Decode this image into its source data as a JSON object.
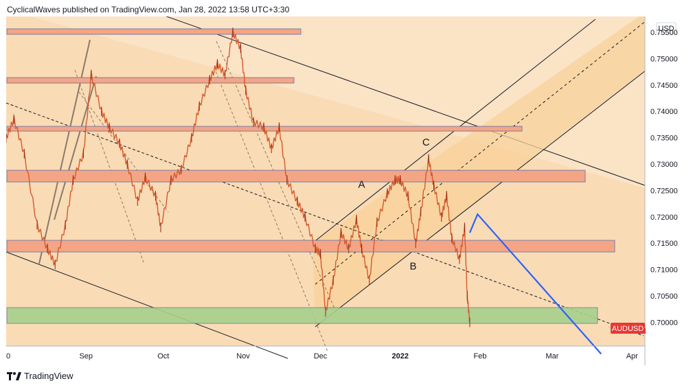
{
  "header": {
    "author": "CyclicalWaves",
    "published_text": "published on TradingView.com,",
    "timestamp": "Jan 28, 2022 13:58 UTC+3:30"
  },
  "footer": {
    "brand": "TradingView",
    "logo_icon": "tradingview-logo-icon"
  },
  "colors": {
    "background": "#fbe3c6",
    "channel_fill": "#f8d29a",
    "resistance_zone": "#f4a585",
    "support_zone": "#a8d08d",
    "candle": "#d35a2e",
    "projection": "#2962ff",
    "symbol_badge": "#e53935"
  },
  "chart_data": {
    "type": "line",
    "symbol": "AUDUSD",
    "currency": "USD",
    "price_scale_ticks": [
      "0.75500",
      "0.75000",
      "0.74500",
      "0.74000",
      "0.73500",
      "0.73000",
      "0.72500",
      "0.72000",
      "0.71500",
      "0.71000",
      "0.70500",
      "0.70000"
    ],
    "time_ticks": [
      "0",
      "Sep",
      "Oct",
      "Nov",
      "Dec",
      "2022",
      "Feb",
      "Mar",
      "Apr"
    ],
    "ylim": [
      0.6955,
      0.758
    ],
    "last_price_label": "AUDUSD",
    "wave_labels": [
      {
        "text": "A",
        "date": "2021-12-17",
        "price": 0.7255
      },
      {
        "text": "B",
        "date": "2022-01-06",
        "price": 0.71
      },
      {
        "text": "C",
        "date": "2022-01-11",
        "price": 0.7335
      }
    ],
    "price_path": [
      [
        "2021-08-01",
        0.735
      ],
      [
        "2021-08-04",
        0.7385
      ],
      [
        "2021-08-08",
        0.732
      ],
      [
        "2021-08-13",
        0.7185
      ],
      [
        "2021-08-17",
        0.714
      ],
      [
        "2021-08-20",
        0.711
      ],
      [
        "2021-08-24",
        0.7185
      ],
      [
        "2021-08-27",
        0.727
      ],
      [
        "2021-08-31",
        0.732
      ],
      [
        "2021-09-03",
        0.747
      ],
      [
        "2021-09-07",
        0.74
      ],
      [
        "2021-09-10",
        0.737
      ],
      [
        "2021-09-14",
        0.734
      ],
      [
        "2021-09-17",
        0.73
      ],
      [
        "2021-09-21",
        0.723
      ],
      [
        "2021-09-24",
        0.7275
      ],
      [
        "2021-09-28",
        0.724
      ],
      [
        "2021-09-30",
        0.718
      ],
      [
        "2021-10-04",
        0.727
      ],
      [
        "2021-10-08",
        0.729
      ],
      [
        "2021-10-12",
        0.735
      ],
      [
        "2021-10-15",
        0.741
      ],
      [
        "2021-10-19",
        0.746
      ],
      [
        "2021-10-22",
        0.749
      ],
      [
        "2021-10-25",
        0.747
      ],
      [
        "2021-10-28",
        0.755
      ],
      [
        "2021-10-31",
        0.752
      ],
      [
        "2021-11-02",
        0.744
      ],
      [
        "2021-11-05",
        0.738
      ],
      [
        "2021-11-09",
        0.737
      ],
      [
        "2021-11-12",
        0.733
      ],
      [
        "2021-11-15",
        0.737
      ],
      [
        "2021-11-18",
        0.727
      ],
      [
        "2021-11-22",
        0.723
      ],
      [
        "2021-11-25",
        0.72
      ],
      [
        "2021-11-29",
        0.714
      ],
      [
        "2021-12-01",
        0.713
      ],
      [
        "2021-12-03",
        0.702
      ],
      [
        "2021-12-06",
        0.708
      ],
      [
        "2021-12-09",
        0.717
      ],
      [
        "2021-12-12",
        0.714
      ],
      [
        "2021-12-15",
        0.7195
      ],
      [
        "2021-12-17",
        0.714
      ],
      [
        "2021-12-20",
        0.708
      ],
      [
        "2021-12-23",
        0.719
      ],
      [
        "2021-12-27",
        0.7245
      ],
      [
        "2021-12-30",
        0.727
      ],
      [
        "2022-01-01",
        0.727
      ],
      [
        "2022-01-04",
        0.724
      ],
      [
        "2022-01-07",
        0.715
      ],
      [
        "2022-01-09",
        0.721
      ],
      [
        "2022-01-12",
        0.731
      ],
      [
        "2022-01-14",
        0.726
      ],
      [
        "2022-01-17",
        0.72
      ],
      [
        "2022-01-19",
        0.724
      ],
      [
        "2022-01-21",
        0.716
      ],
      [
        "2022-01-24",
        0.712
      ],
      [
        "2022-01-26",
        0.718
      ],
      [
        "2022-01-27",
        0.705
      ],
      [
        "2022-01-28",
        0.7
      ]
    ],
    "projection_path": [
      [
        "2022-01-28",
        0.717
      ],
      [
        "2022-01-31",
        0.7205
      ],
      [
        "2022-03-20",
        0.694
      ]
    ]
  }
}
